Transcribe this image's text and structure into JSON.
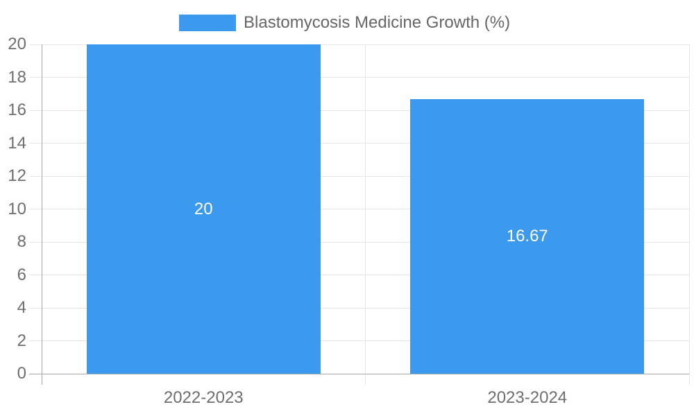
{
  "chart_data": {
    "type": "bar",
    "title": "",
    "legend_label": "Blastomycosis Medicine Growth (%)",
    "legend_position": "top",
    "categories": [
      "2022-2023",
      "2023-2024"
    ],
    "series": [
      {
        "name": "Blastomycosis Medicine Growth (%)",
        "values": [
          20,
          16.67
        ],
        "value_labels": [
          "20",
          "16.67"
        ],
        "color": "#3B99EE"
      }
    ],
    "ylim": [
      0,
      20
    ],
    "yticks": [
      0,
      2,
      4,
      6,
      8,
      10,
      12,
      14,
      16,
      18,
      20
    ],
    "grid": true,
    "xlabel": "",
    "ylabel": ""
  },
  "colors": {
    "bar": "#3B99EE",
    "grid_line": "#E6E6E6",
    "axis_line": "#A6A6A6",
    "tick_text": "#6E6E6E",
    "legend_text": "#666666",
    "bar_label_text": "#FFFFFF",
    "background": "#FFFFFF"
  }
}
